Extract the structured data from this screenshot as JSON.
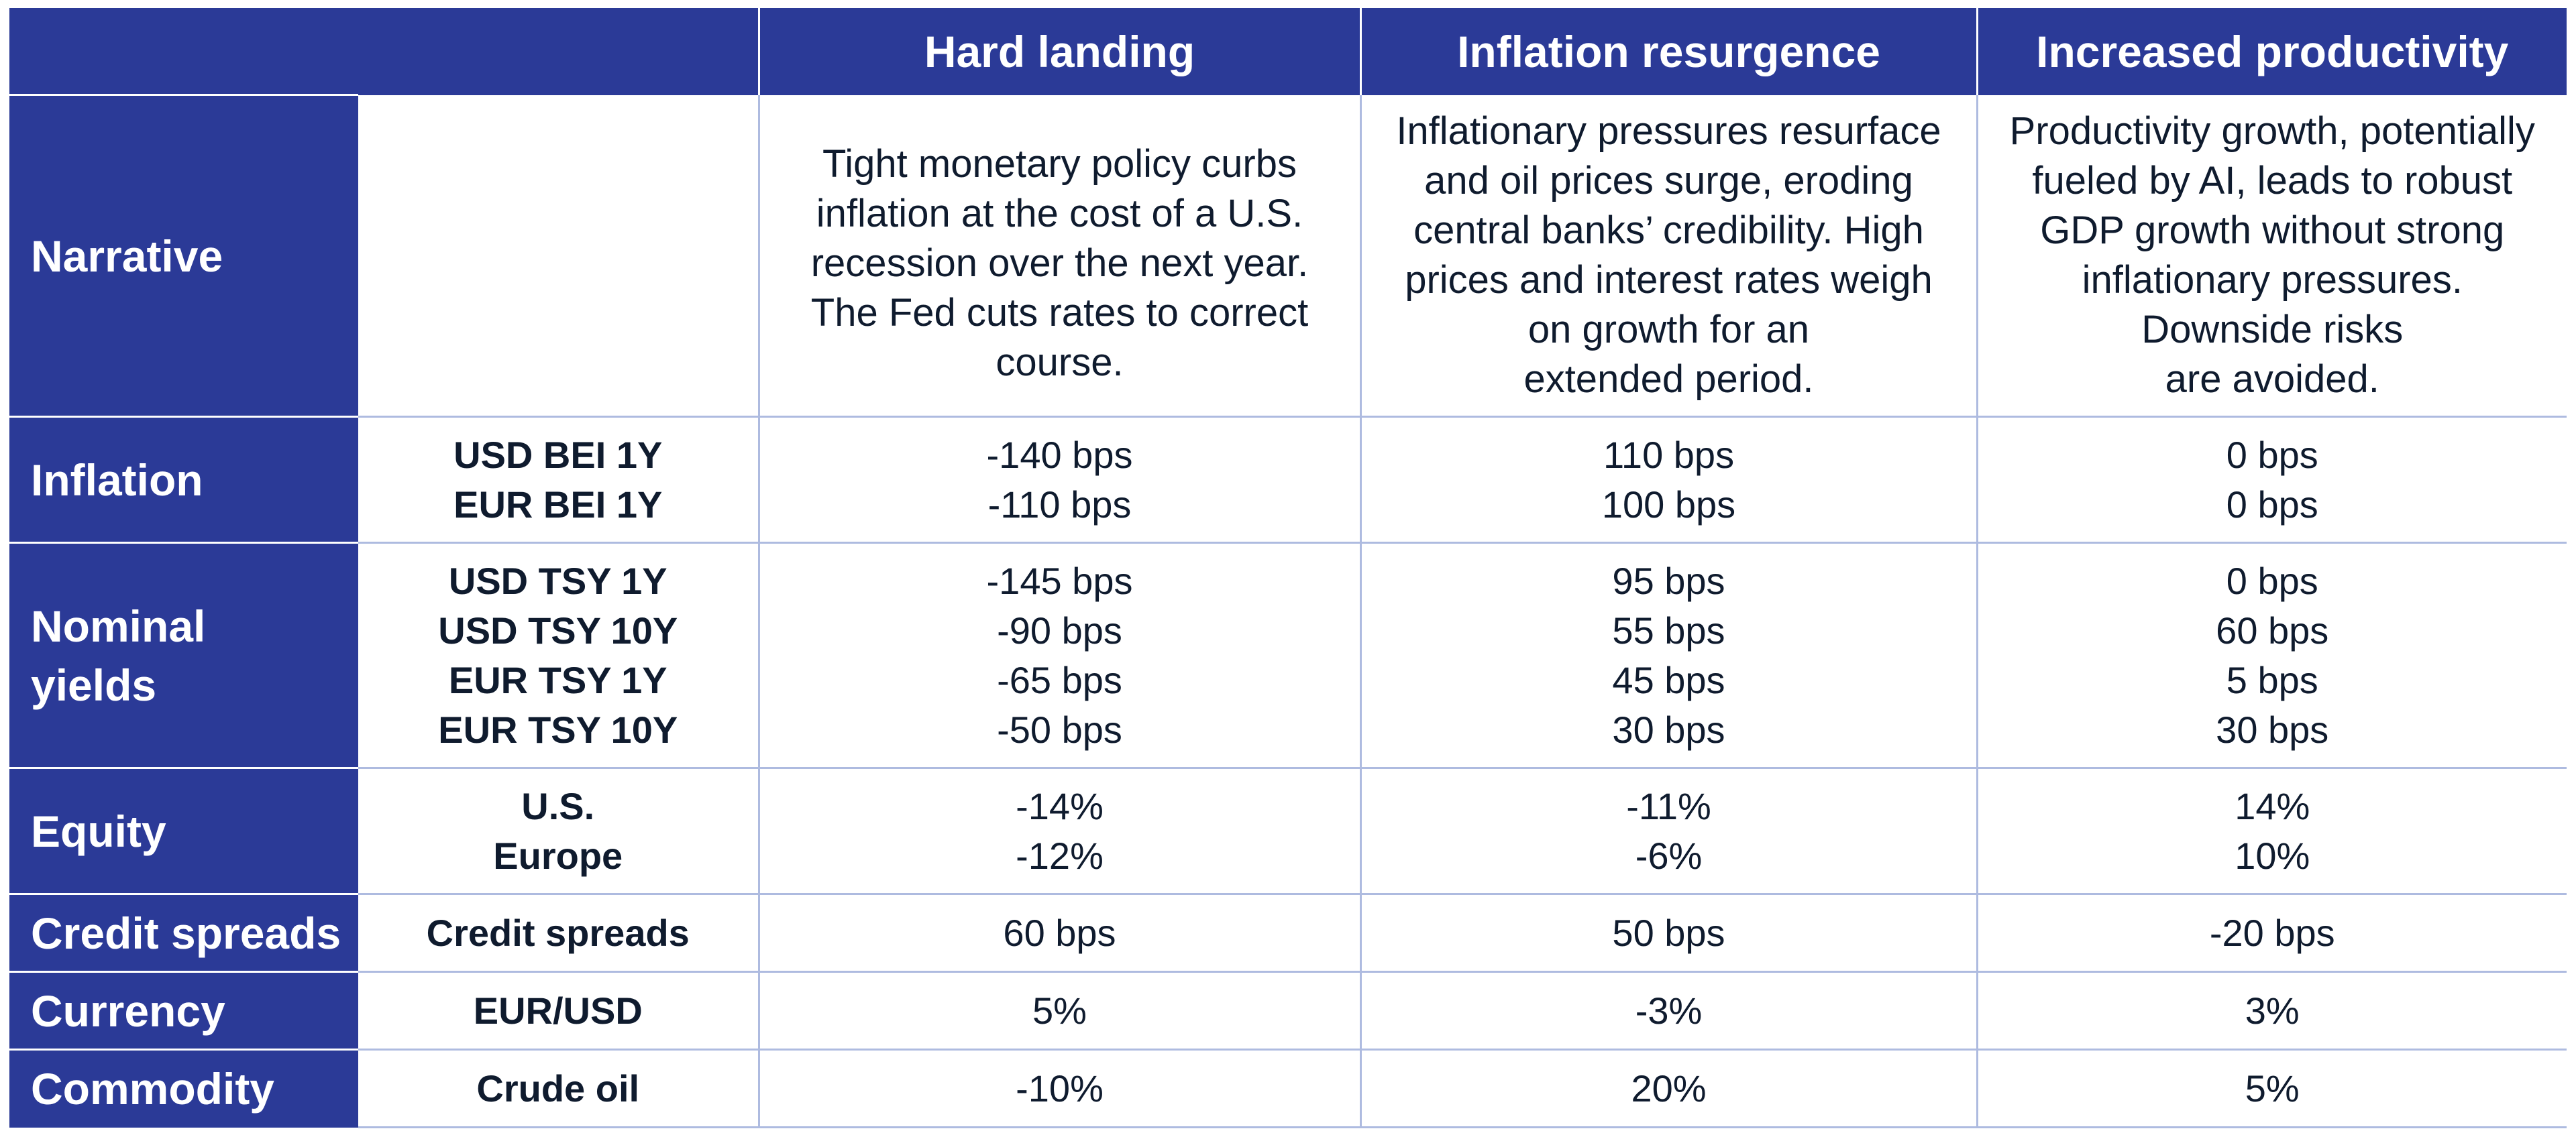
{
  "header": {
    "columns": [
      "Hard landing",
      "Inflation resurgence",
      "Increased productivity"
    ]
  },
  "rows": [
    {
      "category": "Narrative",
      "labels": [],
      "values": [
        [
          "Tight monetary policy curbs",
          "inflation at the cost of a U.S.",
          "recession over the next year.",
          "The Fed cuts rates to correct",
          "course."
        ],
        [
          "Inflationary pressures resurface",
          "and oil prices surge, eroding",
          "central banks’ credibility. High",
          "prices and interest rates weigh",
          "on growth for an",
          "extended period."
        ],
        [
          "Productivity growth, potentially",
          "fueled by AI, leads to robust",
          "GDP growth without strong",
          "inflationary pressures.",
          "Downside risks",
          "are avoided."
        ]
      ]
    },
    {
      "category": "Inflation",
      "labels": [
        "USD BEI 1Y",
        "EUR BEI 1Y"
      ],
      "values": [
        [
          "-140 bps",
          "-110 bps"
        ],
        [
          "110 bps",
          "100 bps"
        ],
        [
          "0 bps",
          "0 bps"
        ]
      ]
    },
    {
      "category": [
        "Nominal",
        "yields"
      ],
      "labels": [
        "USD TSY 1Y",
        "USD TSY 10Y",
        "EUR TSY 1Y",
        "EUR TSY 10Y"
      ],
      "values": [
        [
          "-145 bps",
          "-90 bps",
          "-65 bps",
          "-50 bps"
        ],
        [
          "95 bps",
          "55 bps",
          "45 bps",
          "30 bps"
        ],
        [
          "0 bps",
          "60 bps",
          "5 bps",
          "30 bps"
        ]
      ]
    },
    {
      "category": "Equity",
      "labels": [
        "U.S.",
        "Europe"
      ],
      "values": [
        [
          "-14%",
          "-12%"
        ],
        [
          "-11%",
          "-6%"
        ],
        [
          "14%",
          "10%"
        ]
      ]
    },
    {
      "category": "Credit spreads",
      "labels": [
        "Credit spreads"
      ],
      "values": [
        [
          "60 bps"
        ],
        [
          "50 bps"
        ],
        [
          "-20 bps"
        ]
      ]
    },
    {
      "category": "Currency",
      "labels": [
        "EUR/USD"
      ],
      "values": [
        [
          "5%"
        ],
        [
          "-3%"
        ],
        [
          "3%"
        ]
      ]
    },
    {
      "category": "Commodity",
      "labels": [
        "Crude oil"
      ],
      "values": [
        [
          "-10%"
        ],
        [
          "20%"
        ],
        [
          "5%"
        ]
      ]
    }
  ],
  "colors": {
    "header_bg": "#2b3a97",
    "grid_line": "#aebbe0",
    "text_dark": "#0f1b2e"
  }
}
